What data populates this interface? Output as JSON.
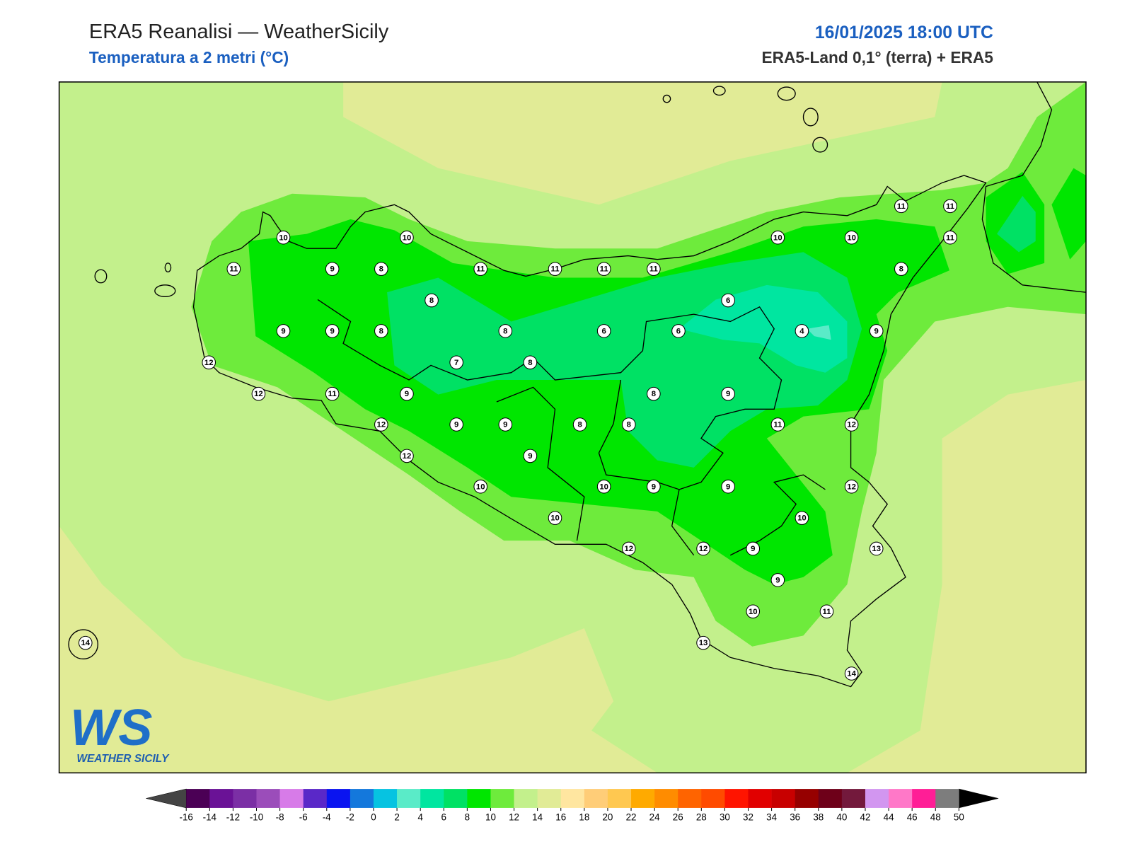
{
  "header": {
    "title": "ERA5 Reanalisi — WeatherSicily",
    "subtitle": "Temperatura a 2 metri (°C)",
    "datetime": "16/01/2025 18:00 UTC",
    "source": "ERA5-Land 0,1° (terra) + ERA5"
  },
  "stations": [
    10,
    10,
    11,
    9,
    8,
    11,
    11,
    11,
    11,
    10,
    10,
    11,
    11,
    11,
    8,
    8,
    6,
    9,
    9,
    8,
    8,
    6,
    6,
    4,
    9,
    12,
    7,
    8,
    12,
    11,
    9,
    8,
    9,
    12,
    9,
    9,
    8,
    8,
    11,
    12,
    12,
    9,
    10,
    10,
    9,
    9,
    12,
    10,
    10,
    12,
    12,
    9,
    13,
    9,
    10,
    11,
    14,
    13,
    14
  ],
  "colorbar": {
    "ticks": [
      -16,
      -14,
      -12,
      -10,
      -8,
      -6,
      -4,
      -2,
      0,
      2,
      4,
      6,
      8,
      10,
      12,
      14,
      16,
      18,
      20,
      22,
      24,
      26,
      28,
      30,
      32,
      34,
      36,
      38,
      40,
      42,
      44,
      46,
      48,
      50
    ],
    "colors": [
      "#4b0055",
      "#6a1296",
      "#7b2fa5",
      "#9b4dba",
      "#d77be8",
      "#5a28c8",
      "#0a14f0",
      "#1478dc",
      "#06c3e1",
      "#5aebc8",
      "#00e6a0",
      "#00e164",
      "#00e600",
      "#6eeb3c",
      "#c3f08c",
      "#e1eb96",
      "#ffe6a0",
      "#ffcd78",
      "#ffc850",
      "#ffaa00",
      "#ff8c00",
      "#ff6400",
      "#ff4b00",
      "#ff1400",
      "#e10000",
      "#c80000",
      "#960000",
      "#6e0019",
      "#73193c",
      "#d296f0",
      "#ff78c8",
      "#ff1e96",
      "#7d7d7d"
    ],
    "under_color": "#444444",
    "over_color": "#000000"
  },
  "logo": {
    "initials": "WS",
    "name": "WEATHER SICILY"
  }
}
